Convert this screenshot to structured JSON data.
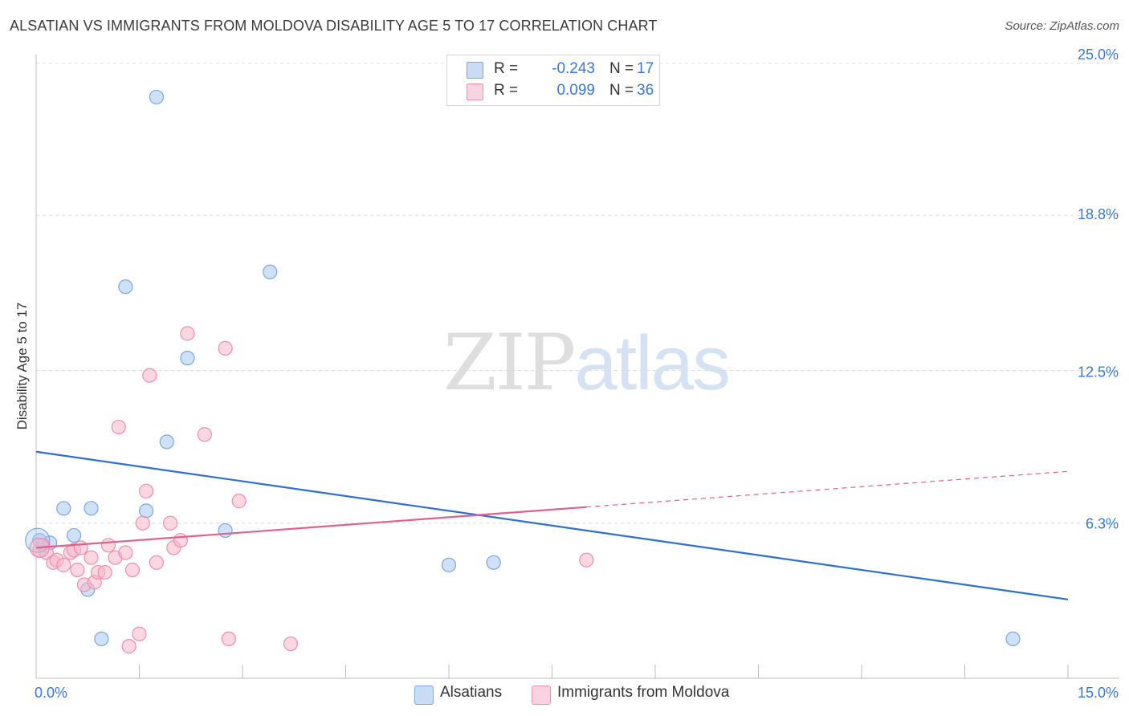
{
  "header": {
    "title": "ALSATIAN VS IMMIGRANTS FROM MOLDOVA DISABILITY AGE 5 TO 17 CORRELATION CHART",
    "source": "Source: ZipAtlas.com"
  },
  "watermark": {
    "zip": "ZIP",
    "atlas": "atlas"
  },
  "stats_legend": [
    {
      "r_label": "R =",
      "r_value": "-0.243",
      "n_label": "N =",
      "n_value": "17",
      "color": "#a8c8f0"
    },
    {
      "r_label": "R =",
      "r_value": "0.099",
      "n_label": "N =",
      "n_value": "36",
      "color": "#f7b6cb"
    }
  ],
  "chart_data": {
    "type": "scatter",
    "title": "ALSATIAN VS IMMIGRANTS FROM MOLDOVA DISABILITY AGE 5 TO 17 CORRELATION CHART",
    "xlabel": "",
    "ylabel": "Disability Age 5 to 17",
    "xlim": [
      0,
      15
    ],
    "ylim": [
      0,
      25
    ],
    "x_tick_labels": [
      "0.0%",
      "15.0%"
    ],
    "y_ticks": [
      6.3,
      12.5,
      18.8,
      25.0
    ],
    "y_tick_labels": [
      "6.3%",
      "12.5%",
      "18.8%",
      "25.0%"
    ],
    "grid": true,
    "legend": "bottom-center",
    "series": [
      {
        "name": "Alsatians",
        "color": "#a8c8f0",
        "stroke": "#7aa8e0",
        "line_color": "#2f6fce",
        "trend": {
          "x0": 0,
          "y0": 9.2,
          "x1": 15,
          "y1": 3.2,
          "dashed_from": null
        },
        "points": [
          [
            0.05,
            5.6
          ],
          [
            0.2,
            5.5
          ],
          [
            0.4,
            6.9
          ],
          [
            0.55,
            5.8
          ],
          [
            0.8,
            6.9
          ],
          [
            0.75,
            3.6
          ],
          [
            0.95,
            1.6
          ],
          [
            1.3,
            15.9
          ],
          [
            1.6,
            6.8
          ],
          [
            1.75,
            23.6
          ],
          [
            1.9,
            9.6
          ],
          [
            2.2,
            13.0
          ],
          [
            2.75,
            6.0
          ],
          [
            3.4,
            16.5
          ],
          [
            6.0,
            4.6
          ],
          [
            6.65,
            4.7
          ],
          [
            14.2,
            1.6
          ]
        ]
      },
      {
        "name": "Immigrants from Moldova",
        "color": "#f7b6cb",
        "stroke": "#ee8fae",
        "line_color": "#e0608c",
        "trend": {
          "x0": 0,
          "y0": 5.3,
          "x1": 15,
          "y1": 8.4,
          "dashed_from": 8.0
        },
        "points": [
          [
            0.05,
            5.2
          ],
          [
            0.1,
            5.4
          ],
          [
            0.15,
            5.1
          ],
          [
            0.25,
            4.7
          ],
          [
            0.3,
            4.8
          ],
          [
            0.4,
            4.6
          ],
          [
            0.5,
            5.1
          ],
          [
            0.55,
            5.2
          ],
          [
            0.6,
            4.4
          ],
          [
            0.65,
            5.3
          ],
          [
            0.7,
            3.8
          ],
          [
            0.8,
            4.9
          ],
          [
            0.85,
            3.9
          ],
          [
            0.9,
            4.3
          ],
          [
            1.0,
            4.3
          ],
          [
            1.05,
            5.4
          ],
          [
            1.15,
            4.9
          ],
          [
            1.2,
            10.2
          ],
          [
            1.3,
            5.1
          ],
          [
            1.4,
            4.4
          ],
          [
            1.5,
            1.8
          ],
          [
            1.55,
            6.3
          ],
          [
            1.6,
            7.6
          ],
          [
            1.65,
            12.3
          ],
          [
            1.75,
            4.7
          ],
          [
            1.95,
            6.3
          ],
          [
            2.0,
            5.3
          ],
          [
            2.1,
            5.6
          ],
          [
            2.2,
            14.0
          ],
          [
            2.45,
            9.9
          ],
          [
            2.75,
            13.4
          ],
          [
            2.8,
            1.6
          ],
          [
            2.95,
            7.2
          ],
          [
            3.7,
            1.4
          ],
          [
            1.35,
            1.3
          ],
          [
            8.0,
            4.8
          ]
        ]
      }
    ]
  }
}
